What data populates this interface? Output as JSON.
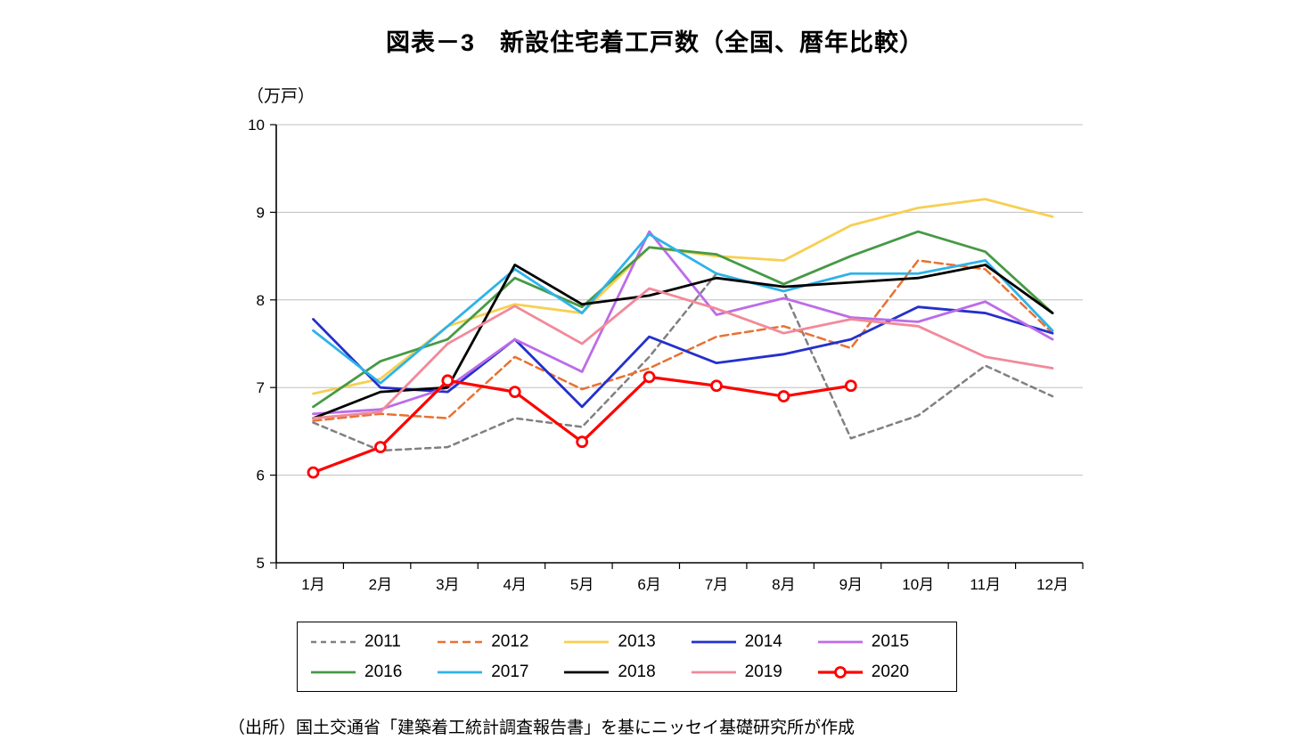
{
  "chart_data": {
    "type": "line",
    "title": "図表－3　新設住宅着工戸数（全国、暦年比較）",
    "unit_label": "（万戸）",
    "source": "（出所）国土交通省「建築着工統計調査報告書」を基にニッセイ基礎研究所が作成",
    "categories": [
      "1月",
      "2月",
      "3月",
      "4月",
      "5月",
      "6月",
      "7月",
      "8月",
      "9月",
      "10月",
      "11月",
      "12月"
    ],
    "ylim": [
      5,
      10
    ],
    "ytick_interval": 1,
    "grid": true,
    "legend_position": "bottom",
    "grid_color": "#bfbfbf",
    "axis_color": "#000000",
    "series": [
      {
        "name": "2011",
        "color": "#808080",
        "dash": "6,5",
        "width": 2.5,
        "marker": false,
        "values": [
          6.6,
          6.28,
          6.32,
          6.65,
          6.55,
          7.35,
          8.3,
          8.1,
          6.42,
          6.68,
          7.25,
          6.9
        ]
      },
      {
        "name": "2012",
        "color": "#e97132",
        "dash": "9,5",
        "width": 2.5,
        "marker": false,
        "values": [
          6.62,
          6.7,
          6.65,
          7.35,
          6.98,
          7.22,
          7.58,
          7.7,
          7.45,
          8.45,
          8.35,
          7.62
        ]
      },
      {
        "name": "2013",
        "color": "#f7cf52",
        "dash": "",
        "width": 2.8,
        "marker": false,
        "values": [
          6.93,
          7.1,
          7.7,
          7.95,
          7.85,
          8.6,
          8.5,
          8.45,
          8.85,
          9.05,
          9.15,
          8.95
        ]
      },
      {
        "name": "2014",
        "color": "#2330cc",
        "dash": "",
        "width": 2.8,
        "marker": false,
        "values": [
          7.78,
          7.0,
          6.95,
          7.55,
          6.78,
          7.58,
          7.28,
          7.38,
          7.55,
          7.92,
          7.85,
          7.62
        ]
      },
      {
        "name": "2015",
        "color": "#bc6ce8",
        "dash": "",
        "width": 2.8,
        "marker": false,
        "values": [
          6.7,
          6.75,
          7.0,
          7.55,
          7.18,
          8.78,
          7.83,
          8.02,
          7.8,
          7.75,
          7.98,
          7.55
        ]
      },
      {
        "name": "2016",
        "color": "#469a45",
        "dash": "",
        "width": 2.8,
        "marker": false,
        "values": [
          6.78,
          7.3,
          7.55,
          8.25,
          7.92,
          8.6,
          8.52,
          8.18,
          8.5,
          8.78,
          8.55,
          7.85
        ]
      },
      {
        "name": "2017",
        "color": "#2eb3e8",
        "dash": "",
        "width": 2.8,
        "marker": false,
        "values": [
          7.65,
          7.05,
          7.7,
          8.35,
          7.85,
          8.75,
          8.3,
          8.1,
          8.3,
          8.3,
          8.45,
          7.65
        ]
      },
      {
        "name": "2018",
        "color": "#000000",
        "dash": "",
        "width": 2.8,
        "marker": false,
        "values": [
          6.65,
          6.95,
          7.0,
          8.4,
          7.95,
          8.05,
          8.25,
          8.15,
          8.2,
          8.25,
          8.4,
          7.85
        ]
      },
      {
        "name": "2019",
        "color": "#f2899a",
        "dash": "",
        "width": 2.8,
        "marker": false,
        "values": [
          6.65,
          6.72,
          7.5,
          7.93,
          7.5,
          8.13,
          7.9,
          7.62,
          7.78,
          7.7,
          7.35,
          7.22
        ]
      },
      {
        "name": "2020",
        "color": "#fe0000",
        "dash": "",
        "width": 3.2,
        "marker": true,
        "values": [
          6.03,
          6.32,
          7.08,
          6.95,
          6.38,
          7.12,
          7.02,
          6.9,
          7.02,
          null,
          null,
          null
        ]
      }
    ]
  }
}
